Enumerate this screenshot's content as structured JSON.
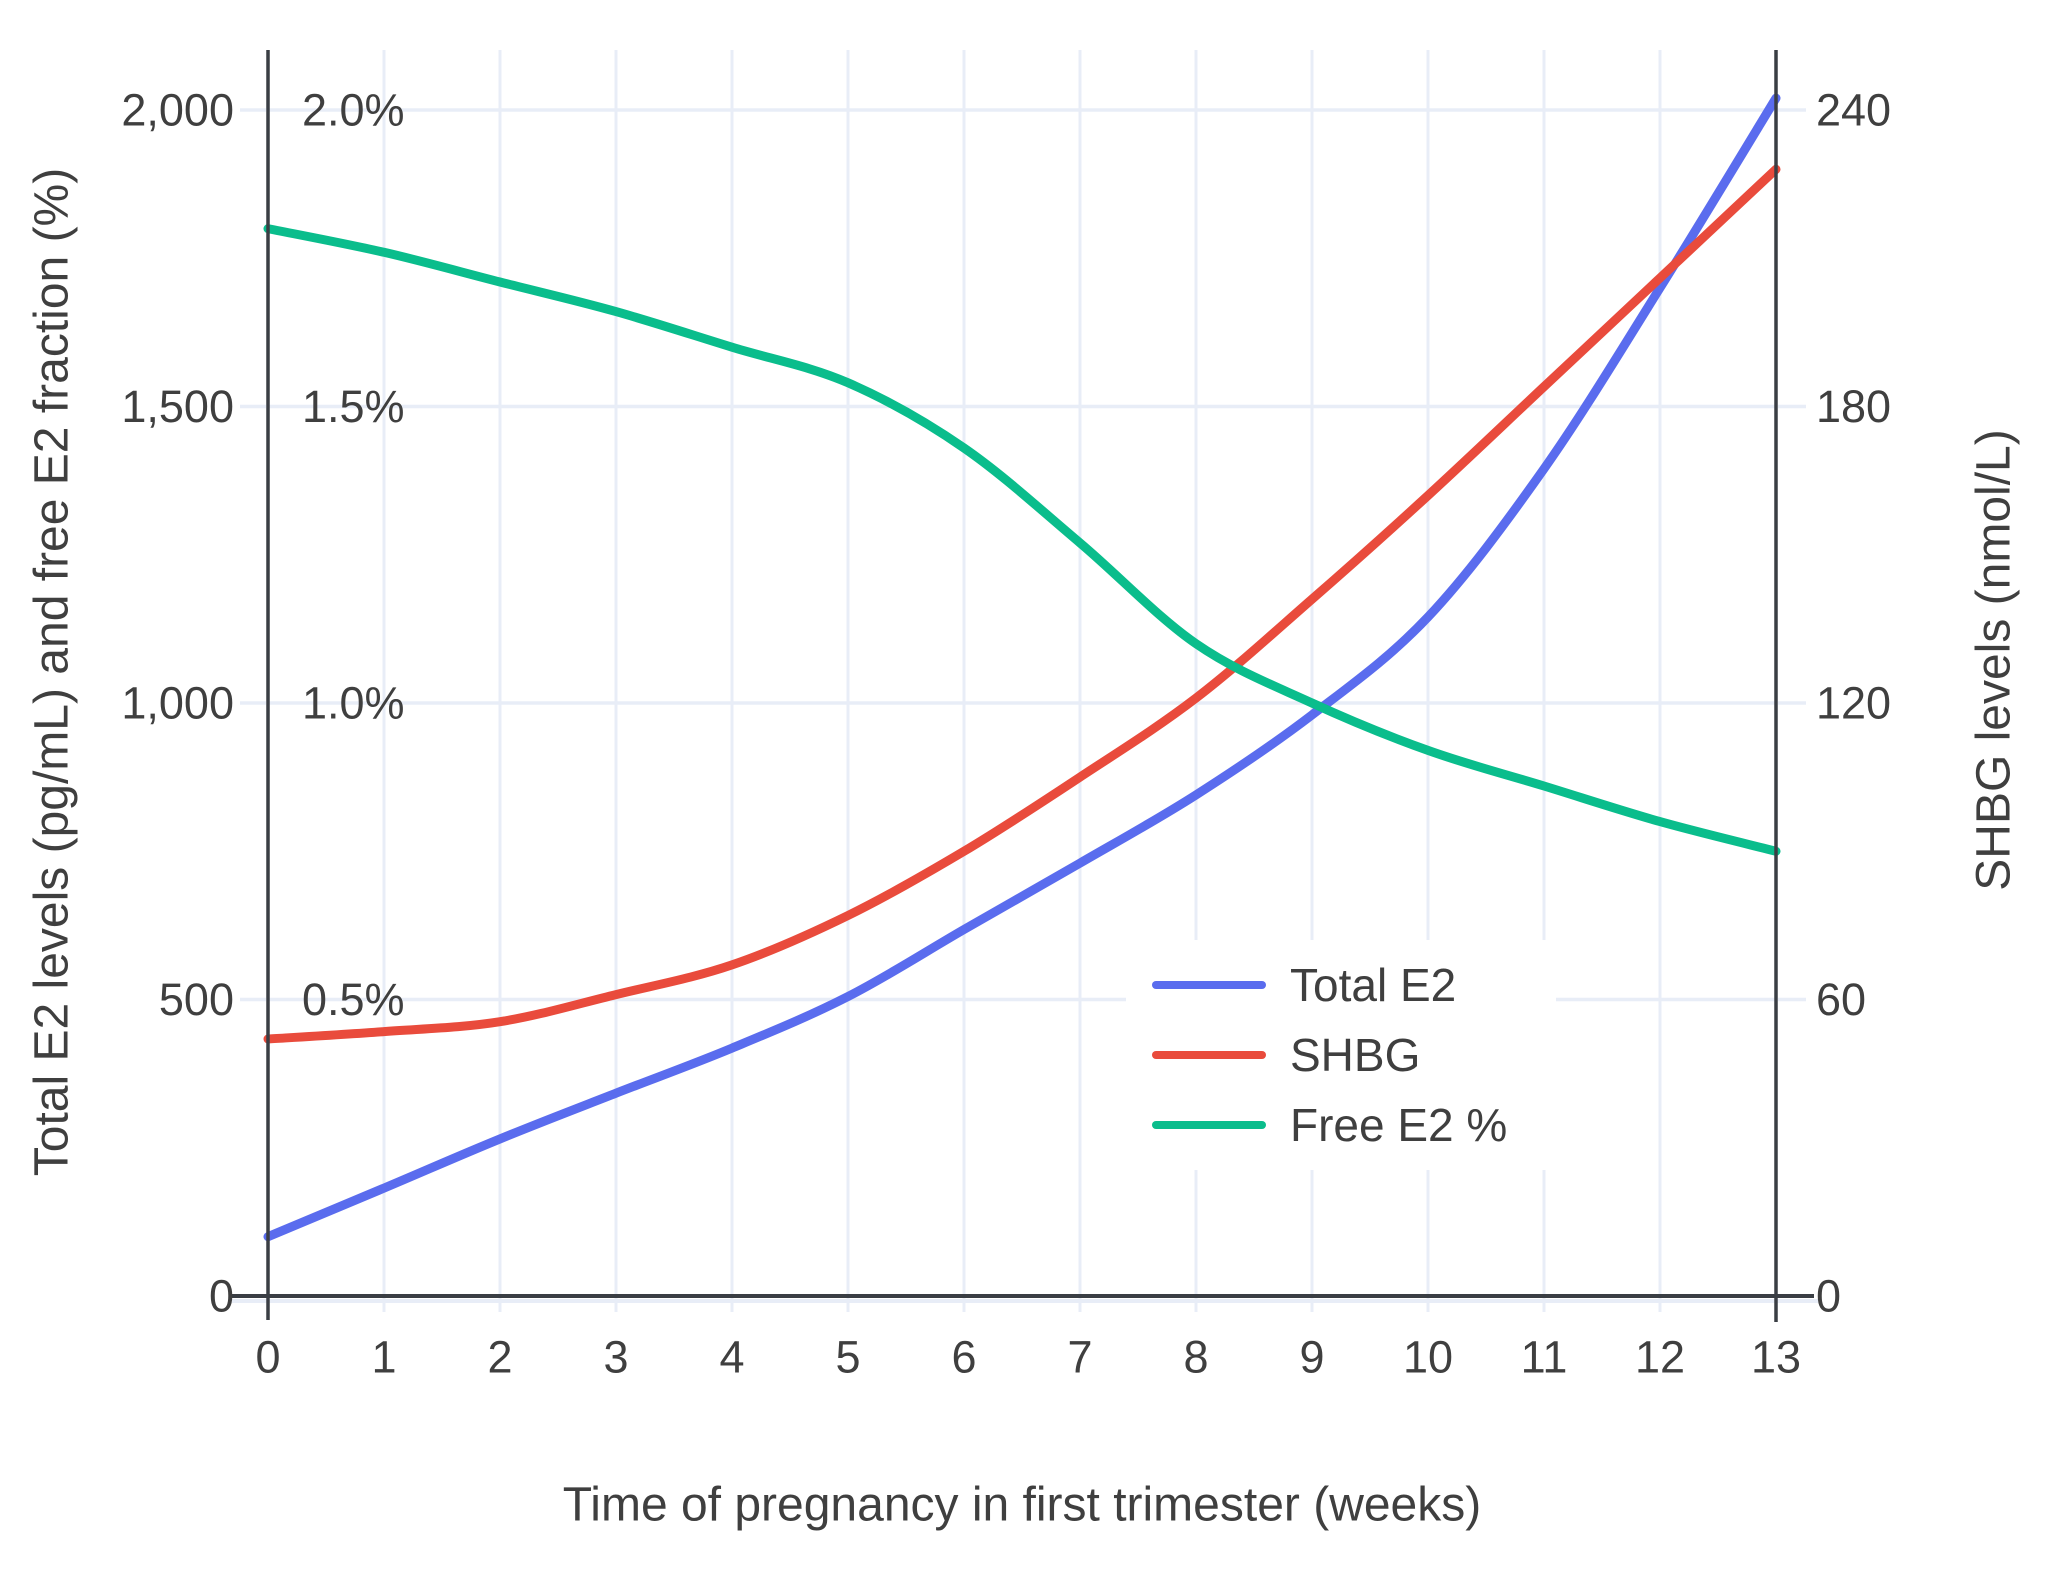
{
  "chart": {
    "left_axis": {
      "title": "Total E2 levels (pg/mL) and free E2 fraction (%)",
      "tick_labels": [
        "2,000",
        "1,500",
        "1,000",
        "500",
        "0"
      ],
      "tick_values": [
        2000,
        1500,
        1000,
        500,
        0
      ],
      "percent_labels": [
        "2.0%",
        "1.5%",
        "1.0%",
        "0.5%"
      ],
      "percent_values": [
        2000,
        1500,
        1000,
        500
      ]
    },
    "right_axis": {
      "title": "SHBG levels (nmol/L)",
      "tick_labels": [
        "240",
        "180",
        "120",
        "60",
        "0"
      ],
      "tick_values": [
        240,
        180,
        120,
        60,
        0
      ]
    },
    "x_axis": {
      "title": "Time of pregnancy in first trimester (weeks)",
      "tick_labels": [
        "0",
        "1",
        "2",
        "3",
        "4",
        "5",
        "6",
        "7",
        "8",
        "9",
        "10",
        "11",
        "12",
        "13"
      ],
      "tick_values": [
        0,
        1,
        2,
        3,
        4,
        5,
        6,
        7,
        8,
        9,
        10,
        11,
        12,
        13
      ]
    },
    "legend": [
      {
        "label": "Total E2",
        "color": "#5A6CEE"
      },
      {
        "label": "SHBG",
        "color": "#E94B3C"
      },
      {
        "label": "Free E2 %",
        "color": "#0ABD8C"
      }
    ],
    "colors": {
      "total_e2": "#5A6CEE",
      "shbg": "#E94B3C",
      "free_e2": "#0ABD8C",
      "gridline": "#E8EDF7",
      "axis": "#3A3E44",
      "text": "#3F3F3F",
      "background": "#FFFFFF"
    }
  },
  "chart_data": {
    "type": "line",
    "x": [
      0,
      1,
      2,
      3,
      4,
      5,
      6,
      7,
      8,
      9,
      10,
      11,
      12,
      13
    ],
    "xlabel": "Time of pregnancy in first trimester (weeks)",
    "ylabel_left": "Total E2 levels (pg/mL) and free E2 fraction (%)",
    "ylabel_right": "SHBG levels (nmol/L)",
    "xlim": [
      0,
      13
    ],
    "ylim_left": [
      0,
      2100
    ],
    "ylim_right": [
      0,
      252
    ],
    "grid": true,
    "legend_position": "inside-lower-right",
    "series": [
      {
        "name": "Total E2",
        "axis": "left",
        "unit": "pg/mL",
        "color": "#5A6CEE",
        "values": [
          100,
          182,
          265,
          342,
          418,
          505,
          618,
          730,
          845,
          980,
          1145,
          1395,
          1700,
          2020
        ]
      },
      {
        "name": "SHBG",
        "axis": "right",
        "unit": "nmol/L",
        "color": "#E94B3C",
        "values": [
          52,
          53.5,
          55.5,
          61,
          67,
          77,
          90,
          105,
          121,
          141,
          162,
          184,
          206,
          228
        ]
      },
      {
        "name": "Free E2 %",
        "axis": "left_percent",
        "unit": "%",
        "color": "#0ABD8C",
        "values": [
          1.8,
          1.76,
          1.71,
          1.66,
          1.6,
          1.54,
          1.43,
          1.27,
          1.1,
          1.0,
          0.92,
          0.86,
          0.8,
          0.75
        ]
      }
    ]
  }
}
